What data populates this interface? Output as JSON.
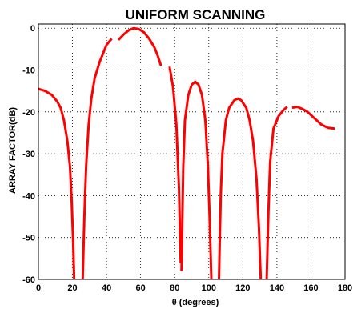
{
  "chart_data": {
    "type": "line",
    "title": "UNIFORM SCANNING",
    "xlabel": "θ (degrees)",
    "ylabel": "ARRAY FACTOR(dB)",
    "xlim": [
      0,
      180
    ],
    "ylim": [
      -60,
      1
    ],
    "xticks": [
      0,
      20,
      40,
      60,
      80,
      100,
      120,
      140,
      160,
      180
    ],
    "yticks": [
      0,
      -10,
      -20,
      -30,
      -40,
      -50,
      -60
    ],
    "grid": true,
    "color": "#ff0000",
    "series": [
      {
        "segments": [
          [
            [
              0,
              -14.5
            ],
            [
              4,
              -15
            ],
            [
              8,
              -16
            ],
            [
              11,
              -17.5
            ],
            [
              13,
              -19
            ],
            [
              15,
              -22
            ],
            [
              17,
              -27
            ],
            [
              18.5,
              -33
            ],
            [
              19.5,
              -41
            ],
            [
              20.3,
              -50
            ],
            [
              21,
              -60
            ]
          ],
          [
            [
              26,
              -60
            ],
            [
              27,
              -45
            ],
            [
              28,
              -33
            ],
            [
              29.5,
              -23
            ],
            [
              31,
              -17
            ],
            [
              33,
              -12
            ],
            [
              36,
              -8
            ],
            [
              40,
              -4
            ],
            [
              43,
              -2.5
            ]
          ],
          [
            [
              47,
              -2.8
            ],
            [
              50,
              -1.5
            ],
            [
              53,
              -0.5
            ],
            [
              56,
              0
            ],
            [
              59,
              -0.2
            ],
            [
              62,
              -1
            ],
            [
              65,
              -2.5
            ],
            [
              68,
              -4.5
            ],
            [
              70,
              -6.5
            ],
            [
              72,
              -9
            ]
          ],
          [
            [
              77,
              -9.2
            ],
            [
              79,
              -14
            ],
            [
              81,
              -23
            ],
            [
              82.5,
              -38
            ],
            [
              83.5,
              -56
            ]
          ],
          [
            [
              84,
              -58
            ],
            [
              85,
              -33
            ],
            [
              86,
              -22
            ],
            [
              88,
              -16
            ],
            [
              90,
              -13.5
            ],
            [
              92,
              -12.8
            ],
            [
              94,
              -13.5
            ],
            [
              96,
              -16
            ],
            [
              98,
              -22
            ],
            [
              99.5,
              -33
            ],
            [
              100.5,
              -45
            ],
            [
              101.5,
              -60
            ]
          ],
          [
            [
              106,
              -60
            ],
            [
              107,
              -40
            ],
            [
              108,
              -30
            ],
            [
              110,
              -22
            ],
            [
              112,
              -19
            ],
            [
              115,
              -17.2
            ],
            [
              117,
              -16.8
            ],
            [
              119,
              -17.2
            ],
            [
              122,
              -19
            ],
            [
              124,
              -22
            ],
            [
              126,
              -27
            ],
            [
              128,
              -36
            ],
            [
              129.5,
              -48
            ],
            [
              130.5,
              -60
            ]
          ],
          [
            [
              134,
              -60
            ],
            [
              135,
              -44
            ],
            [
              136,
              -32
            ],
            [
              138,
              -24
            ],
            [
              141,
              -21
            ],
            [
              144,
              -19.5
            ],
            [
              146,
              -18.8
            ]
          ],
          [
            [
              149,
              -19
            ],
            [
              152,
              -18.8
            ],
            [
              155,
              -19.3
            ],
            [
              158,
              -20
            ],
            [
              162,
              -21.5
            ],
            [
              166,
              -23
            ],
            [
              170,
              -23.8
            ],
            [
              174,
              -24
            ]
          ]
        ]
      }
    ]
  }
}
